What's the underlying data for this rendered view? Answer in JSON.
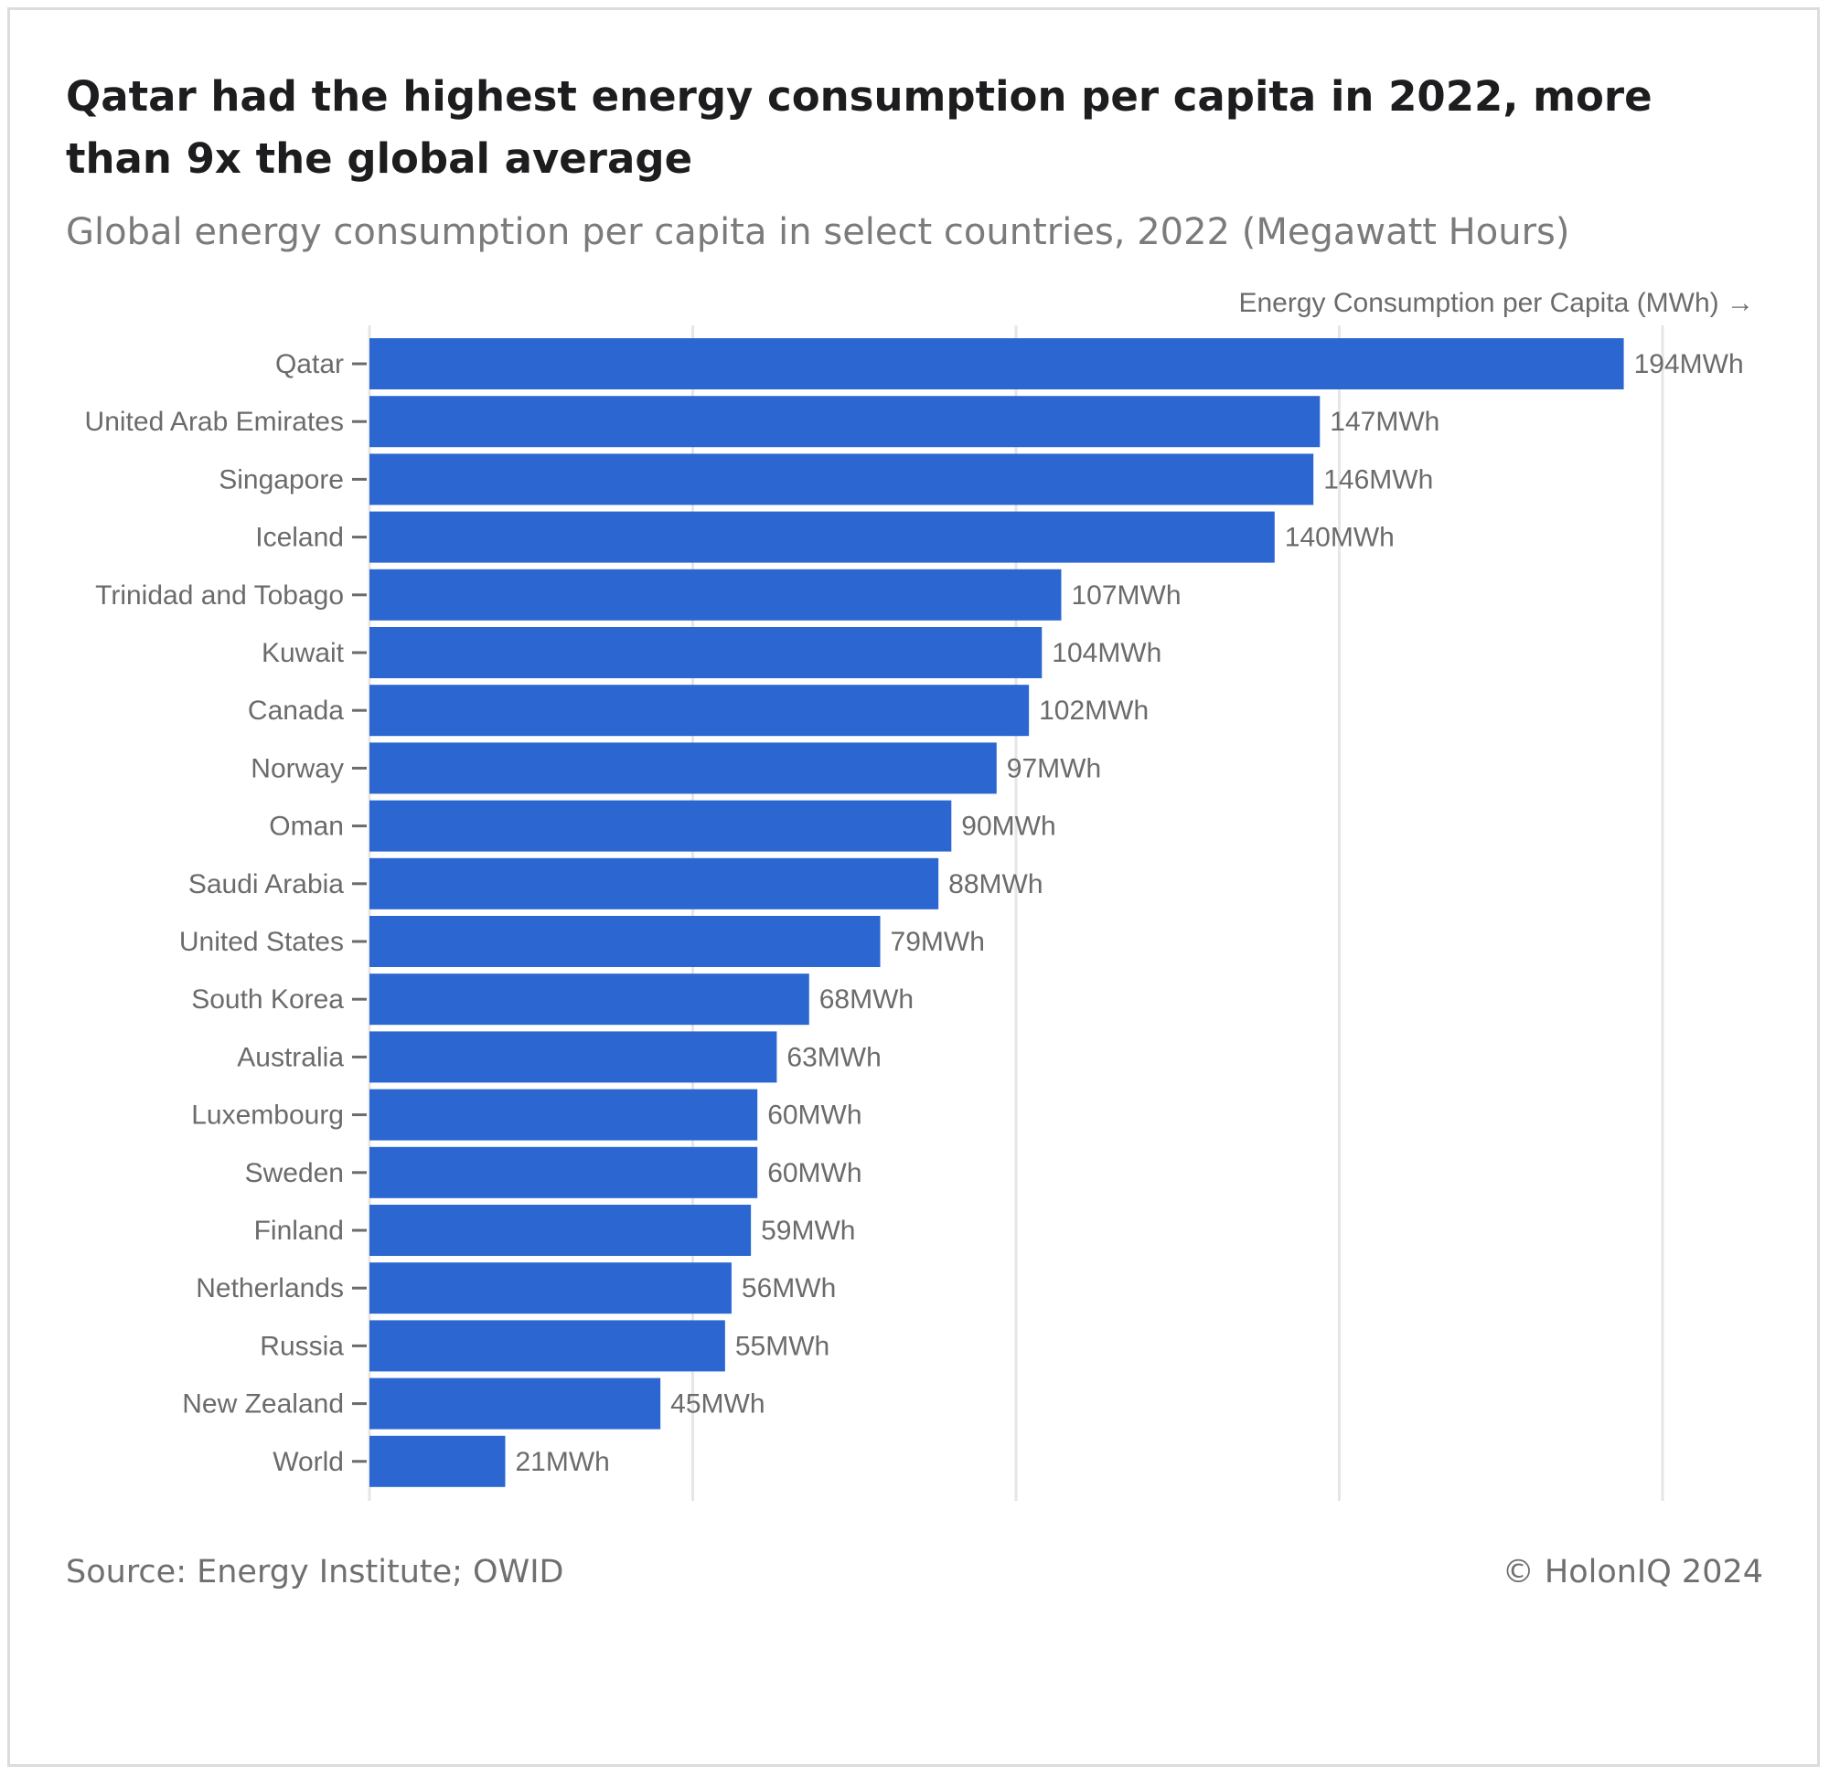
{
  "header": {
    "title": "Qatar had the highest energy consumption per capita in 2022, more than 9x the global average",
    "subtitle": "Global energy consumption per capita in select countries, 2022 (Megawatt Hours)"
  },
  "footer": {
    "source": "Source: Energy Institute; OWID",
    "copyright": "© HolonIQ 2024"
  },
  "colors": {
    "bar": "#2b66d1",
    "grid": "#e6e6e6",
    "label": "#6b6b6b"
  },
  "chart_data": {
    "type": "bar",
    "orientation": "horizontal",
    "xlabel": "Energy Consumption per Capita (MWh) →",
    "value_suffix": "MWh",
    "xlim": [
      0,
      200
    ],
    "grid": true,
    "categories": [
      "Qatar",
      "United Arab Emirates",
      "Singapore",
      "Iceland",
      "Trinidad and Tobago",
      "Kuwait",
      "Canada",
      "Norway",
      "Oman",
      "Saudi Arabia",
      "United States",
      "South Korea",
      "Australia",
      "Luxembourg",
      "Sweden",
      "Finland",
      "Netherlands",
      "Russia",
      "New Zealand",
      "World"
    ],
    "values": [
      194,
      147,
      146,
      140,
      107,
      104,
      102,
      97,
      90,
      88,
      79,
      68,
      63,
      60,
      60,
      59,
      56,
      55,
      45,
      21
    ],
    "data_labels": [
      "194MWh",
      "147MWh",
      "146MWh",
      "140MWh",
      "107MWh",
      "104MWh",
      "102MWh",
      "97MWh",
      "90MWh",
      "88MWh",
      "79MWh",
      "68MWh",
      "63MWh",
      "60MWh",
      "60MWh",
      "59MWh",
      "56MWh",
      "55MWh",
      "45MWh",
      "21MWh"
    ]
  }
}
